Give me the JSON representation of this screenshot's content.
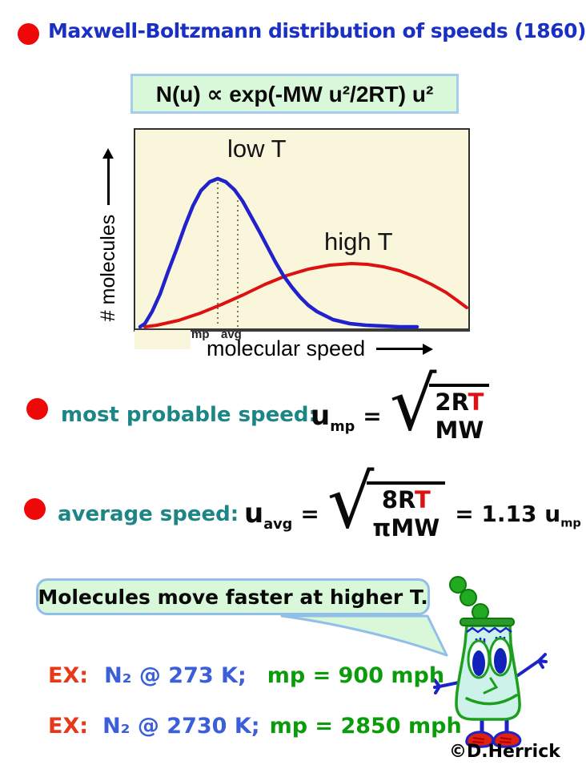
{
  "slide": {
    "title": "Maxwell-Boltzmann distribution of speeds (1860)",
    "credit": "©D.Herrick"
  },
  "formula_box": {
    "formula": "N(u) ∝ exp(-MW u²/2RT) u²"
  },
  "chart_data": {
    "type": "line",
    "title": "",
    "xlabel": "molecular speed",
    "ylabel": "# molecules",
    "x_tick_labels": [
      "mp",
      "avg"
    ],
    "grid": false,
    "legend_position": "inline-annotations",
    "series": [
      {
        "name": "low T",
        "color": "#2222cc",
        "points": [
          [
            6,
            246
          ],
          [
            12,
            242
          ],
          [
            21,
            227
          ],
          [
            31,
            205
          ],
          [
            41,
            177
          ],
          [
            52,
            148
          ],
          [
            62,
            120
          ],
          [
            72,
            95
          ],
          [
            82,
            76
          ],
          [
            93,
            65
          ],
          [
            103,
            61
          ],
          [
            113,
            65
          ],
          [
            124,
            75
          ],
          [
            134,
            89
          ],
          [
            144,
            107
          ],
          [
            155,
            127
          ],
          [
            165,
            146
          ],
          [
            175,
            165
          ],
          [
            185,
            182
          ],
          [
            196,
            197
          ],
          [
            206,
            209
          ],
          [
            216,
            219
          ],
          [
            227,
            227
          ],
          [
            247,
            237
          ],
          [
            268,
            242
          ],
          [
            288,
            244
          ],
          [
            309,
            245
          ],
          [
            330,
            246
          ],
          [
            352,
            246
          ]
        ]
      },
      {
        "name": "high T",
        "color": "#dd1111",
        "points": [
          [
            12,
            246
          ],
          [
            27,
            244
          ],
          [
            54,
            238
          ],
          [
            81,
            229
          ],
          [
            108,
            218
          ],
          [
            135,
            206
          ],
          [
            162,
            193
          ],
          [
            189,
            182
          ],
          [
            216,
            174
          ],
          [
            243,
            169
          ],
          [
            270,
            167
          ],
          [
            290,
            168
          ],
          [
            310,
            171
          ],
          [
            330,
            176
          ],
          [
            351,
            184
          ],
          [
            370,
            193
          ],
          [
            388,
            203
          ],
          [
            402,
            213
          ],
          [
            414,
            222
          ]
        ]
      }
    ],
    "markers": [
      {
        "label": "mp",
        "x": 103,
        "y_top": 66,
        "y_base": 246
      },
      {
        "label": "avg",
        "x": 128,
        "y_top": 88,
        "y_base": 246
      }
    ]
  },
  "sections": {
    "most_probable": {
      "label": "most probable speed:",
      "u": "u",
      "u_sub": "mp",
      "equals": "=",
      "num_black": "2R",
      "num_red": "T",
      "den": "MW"
    },
    "average": {
      "label": "average speed:",
      "u": "u",
      "u_sub": "avg",
      "equals": "=",
      "num_black": "8R",
      "num_red": "T",
      "den": "πMW",
      "result": "= 1.13",
      "result_u": "u",
      "result_sub": "mp"
    }
  },
  "callout": {
    "text": "Molecules move faster at higher T."
  },
  "examples": [
    {
      "prefix": "EX:",
      "condition": "N₂ @ 273 K;",
      "result": "mp = 900 mph"
    },
    {
      "prefix": "EX:",
      "condition": "N₂ @ 2730 K;",
      "result": "mp = 2850 mph"
    }
  ],
  "colors": {
    "title_blue": "#1a2fc4",
    "bullet_red": "#ee0808",
    "teal_label": "#1c8585",
    "box_fill_green": "#d9f7d9",
    "box_border_blue": "#a6cbec",
    "chart_background": "#faf6dc",
    "curve_low_t": "#2222cc",
    "curve_high_t": "#dd1111",
    "red_T": "#dd1111",
    "ex_red": "#e8381a",
    "ex_blue": "#3a5fd9",
    "ex_green": "#0a9c0a"
  }
}
